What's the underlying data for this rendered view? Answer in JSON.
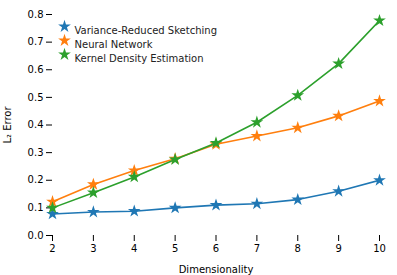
{
  "chart_data": {
    "type": "line",
    "x": [
      2,
      3,
      4,
      5,
      6,
      7,
      8,
      9,
      10
    ],
    "series": [
      {
        "name": "Variance-Reduced Sketching",
        "color": "#1f77b4",
        "values": [
          0.078,
          0.085,
          0.088,
          0.1,
          0.11,
          0.115,
          0.13,
          0.16,
          0.2
        ]
      },
      {
        "name": "Neural Network",
        "color": "#ff7f0e",
        "values": [
          0.122,
          0.185,
          0.235,
          0.278,
          0.33,
          0.36,
          0.39,
          0.433,
          0.487
        ]
      },
      {
        "name": "Kernel Density Estimation",
        "color": "#2ca02c",
        "values": [
          0.1,
          0.155,
          0.212,
          0.275,
          0.335,
          0.41,
          0.507,
          0.622,
          0.778
        ]
      }
    ],
    "xlabel": "Dimensionality",
    "ylabel": "L₂ Error",
    "xlim": [
      2,
      10
    ],
    "ylim": [
      0.0,
      0.8
    ],
    "xticks": [
      2,
      3,
      4,
      5,
      6,
      7,
      8,
      9,
      10
    ],
    "yticks": [
      {
        "value": 0.0,
        "label": "0.0"
      },
      0.1,
      0.2,
      0.3,
      0.4,
      0.5,
      0.6,
      0.7,
      0.8
    ],
    "marker": "star",
    "legend": "upper left",
    "grid": false
  }
}
